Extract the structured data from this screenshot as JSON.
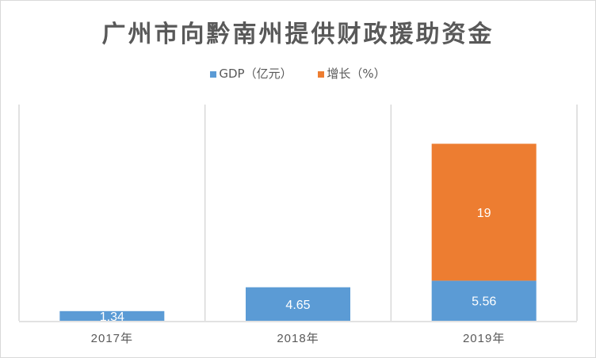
{
  "chart_data": {
    "type": "bar",
    "stacked": true,
    "title": "广州市向黔南州提供财政援助资金",
    "categories": [
      "2017年",
      "2018年",
      "2019年"
    ],
    "series": [
      {
        "name": "GDP（亿元）",
        "values": [
          1.34,
          4.65,
          5.56
        ],
        "labels": [
          "1.34",
          "4.65",
          "5.56"
        ],
        "color": "#5b9bd5"
      },
      {
        "name": "增长（%）",
        "values": [
          0,
          0,
          19
        ],
        "labels": [
          "",
          "",
          "19"
        ],
        "color": "#ed7d31"
      }
    ],
    "xlabel": "",
    "ylabel": "",
    "ylim": [
      0,
      30
    ],
    "grid": "vertical category separators",
    "legend": "top-center"
  }
}
